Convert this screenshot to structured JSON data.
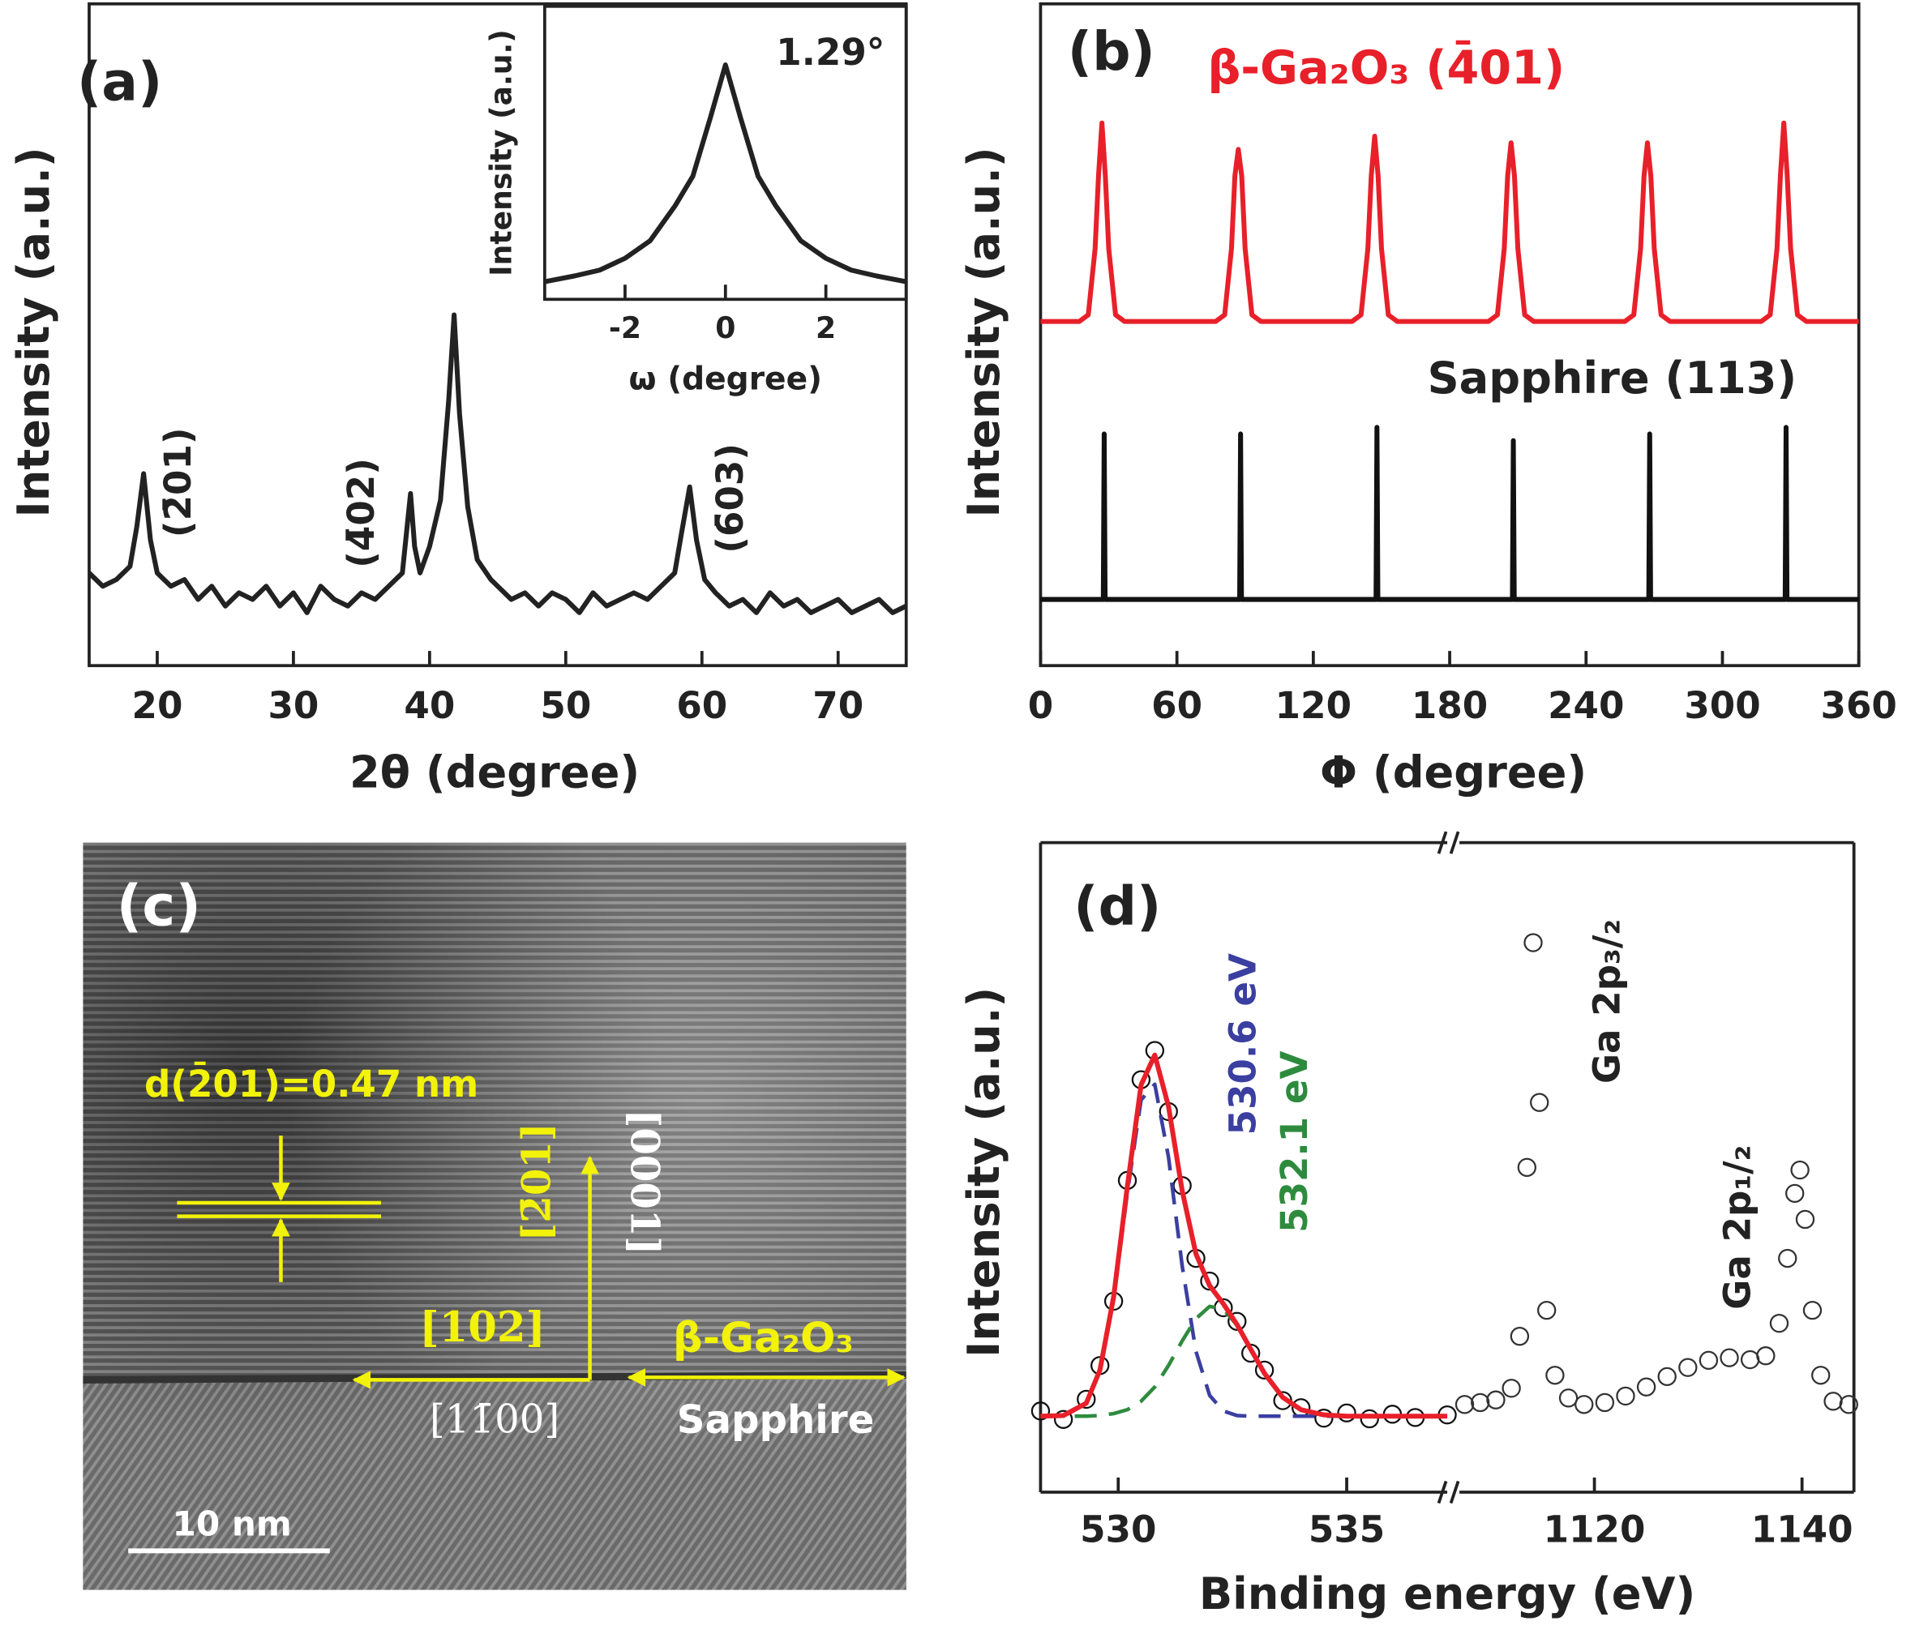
{
  "chart_data": [
    {
      "type": "line",
      "panel_label": "(a)",
      "xlabel": "2θ (degree)",
      "ylabel": "Intensity (a.u.)",
      "xlim": [
        15,
        75
      ],
      "xticks": [
        20,
        30,
        40,
        50,
        60,
        70
      ],
      "ylim": [
        0,
        100
      ],
      "annotations": [
        {
          "text": "(2̄01)",
          "color": "#222222"
        },
        {
          "text": "(4̄02)",
          "color": "#222222"
        },
        {
          "text": "(6̄03)",
          "color": "#222222"
        }
      ],
      "series": [
        {
          "color": "#222222",
          "style": "line",
          "x": [
            15,
            16,
            17,
            18,
            18.5,
            19,
            19.5,
            20,
            21,
            22,
            23,
            24,
            25,
            26,
            27,
            28,
            29,
            30,
            31,
            32,
            33,
            34,
            35,
            36,
            37,
            38,
            38.3,
            38.6,
            38.9,
            39.3,
            40,
            40.8,
            41.4,
            41.8,
            42.2,
            42.8,
            43.5,
            44.5,
            45,
            46,
            47,
            48,
            49,
            50,
            51,
            52,
            53,
            54,
            55,
            56,
            57,
            58,
            58.5,
            59.1,
            59.6,
            60.2,
            61,
            62,
            63,
            64,
            65,
            66,
            67,
            68,
            69,
            70,
            71,
            72,
            73,
            74,
            75
          ],
          "values": [
            14,
            12,
            13,
            15,
            21,
            29,
            19,
            14,
            12,
            13,
            10,
            12,
            9,
            11,
            10,
            12,
            9,
            11,
            8,
            12,
            10,
            9,
            11,
            10,
            12,
            14,
            20,
            26,
            18,
            14,
            18,
            25,
            40,
            53,
            38,
            24,
            16,
            13,
            12,
            10,
            11,
            9,
            11,
            10,
            8,
            11,
            9,
            10,
            11,
            10,
            12,
            14,
            20,
            27,
            19,
            13,
            11,
            9,
            10,
            8,
            11,
            9,
            10,
            8,
            9,
            10,
            8,
            9,
            10,
            8,
            9
          ]
        }
      ]
    },
    {
      "type": "line",
      "xlabel": "ω (degree)",
      "ylabel": "Intensity (a.u.)",
      "xlim": [
        -3.6,
        3.6
      ],
      "xticks": [
        -2,
        0,
        2
      ],
      "ylim": [
        0,
        100
      ],
      "annotations": [
        {
          "text": "1.29°",
          "color": "#222222"
        }
      ],
      "series": [
        {
          "color": "#222222",
          "style": "line",
          "x": [
            -3.6,
            -3,
            -2.5,
            -2,
            -1.5,
            -1,
            -0.65,
            -0.3,
            0,
            0.3,
            0.65,
            1,
            1.5,
            2,
            2.5,
            3,
            3.6
          ],
          "values": [
            6,
            8,
            10,
            14,
            20,
            32,
            42,
            62,
            80,
            62,
            42,
            32,
            20,
            14,
            10,
            8,
            6
          ]
        }
      ]
    },
    {
      "type": "line",
      "panel_label": "(b)",
      "xlabel": "Φ (degree)",
      "ylabel": "Intensity (a.u.)",
      "xlim": [
        0,
        360
      ],
      "xticks": [
        0,
        60,
        120,
        180,
        240,
        300,
        360
      ],
      "ylim": [
        0,
        100
      ],
      "annotations": [
        {
          "text": "β-Ga₂O₃ (4̄01)",
          "color": "#e8202a"
        },
        {
          "text": "Sapphire (113)",
          "color": "#222222"
        }
      ],
      "series": [
        {
          "color": "#e8202a",
          "style": "line",
          "x": [
            0,
            17,
            21,
            24,
            25.5,
            27,
            28.5,
            30,
            33,
            37,
            77,
            81,
            84,
            85.5,
            87,
            88.5,
            90,
            93,
            97,
            137,
            141,
            144,
            145.5,
            147,
            148.5,
            150,
            153,
            157,
            197,
            201,
            204,
            205.5,
            207,
            208.5,
            210,
            213,
            217,
            257,
            261,
            264,
            265.5,
            267,
            268.5,
            270,
            273,
            277,
            317,
            321,
            324,
            325.5,
            327,
            328.5,
            330,
            333,
            337,
            360
          ],
          "values": [
            52,
            52,
            53,
            63,
            74,
            82,
            74,
            63,
            53,
            52,
            52,
            53,
            63,
            74,
            78,
            74,
            63,
            53,
            52,
            52,
            53,
            63,
            74,
            80,
            74,
            63,
            53,
            52,
            52,
            53,
            63,
            74,
            79,
            74,
            63,
            53,
            52,
            52,
            53,
            63,
            74,
            79,
            74,
            63,
            53,
            52,
            52,
            53,
            63,
            74,
            82,
            74,
            63,
            53,
            52,
            52
          ]
        },
        {
          "color": "#111111",
          "style": "line",
          "x": [
            0,
            27.6,
            28,
            28.4,
            87.6,
            88,
            88.4,
            147.6,
            148,
            148.4,
            207.6,
            208,
            208.4,
            267.6,
            268,
            268.4,
            327.6,
            328,
            328.4,
            360
          ],
          "values": [
            10,
            10,
            35,
            10,
            10,
            35,
            10,
            10,
            36,
            10,
            10,
            34,
            10,
            10,
            35,
            10,
            10,
            36,
            10,
            10
          ]
        }
      ]
    },
    {
      "type": "line",
      "panel_label": "(d)",
      "xlabel": "Binding energy (eV)",
      "ylabel": "Intensity (a.u.)",
      "xlim": [
        [
          528.3,
          537.2
        ],
        [
          1107,
          1145
        ]
      ],
      "xticks": [
        [
          530,
          535
        ],
        [
          1120,
          1140
        ]
      ],
      "ylim": [
        0,
        100
      ],
      "annotations": [
        {
          "text": "530.6 eV",
          "color": "#3b3fa0"
        },
        {
          "text": "532.1 eV",
          "color": "#2e8b3e"
        },
        {
          "text": "Ga 2p₃/₂",
          "color": "#222222"
        },
        {
          "text": "Ga 2p₁/₂",
          "color": "#222222"
        }
      ],
      "series": [
        {
          "color": "#111111",
          "style": "markers",
          "x": [
            528.3,
            528.8,
            529.3,
            529.6,
            529.9,
            530.2,
            530.5,
            530.8,
            531.1,
            531.4,
            531.7,
            532.0,
            532.3,
            532.6,
            532.9,
            533.2,
            533.6,
            534.0,
            534.5,
            535,
            535.5,
            536,
            536.5,
            537.2
          ],
          "values": [
            12.5,
            11.2,
            14.3,
            19.5,
            29.4,
            48.0,
            63.5,
            68.0,
            58.6,
            47.2,
            36.0,
            32.5,
            28.4,
            26.3,
            21.4,
            18.8,
            14.1,
            13.0,
            11.4,
            12.2,
            11.3,
            12.0,
            11.5,
            11.9
          ]
        },
        {
          "color": "#3b3fa0",
          "style": "dashed",
          "x": [
            528.3,
            528.8,
            529.3,
            529.6,
            529.9,
            530.2,
            530.5,
            530.8,
            531.1,
            531.4,
            531.7,
            532.0,
            532.3,
            532.6,
            532.9,
            533.2,
            533.6,
            534.0,
            534.5,
            535,
            535.5,
            536,
            536.5,
            537.2
          ],
          "values": [
            11.7,
            11.8,
            13.7,
            18.7,
            29.7,
            46.1,
            60.4,
            62.8,
            51.6,
            34.8,
            21.7,
            14.9,
            12.5,
            11.8,
            11.7,
            11.7,
            11.7,
            11.7,
            11.7,
            11.7,
            11.7,
            11.7,
            11.7,
            11.7
          ]
        },
        {
          "color": "#2e8b3e",
          "style": "dashed",
          "x": [
            528.3,
            528.8,
            529.3,
            529.6,
            529.9,
            530.2,
            530.5,
            530.8,
            531.1,
            531.4,
            531.7,
            532.0,
            532.3,
            532.6,
            532.9,
            533.2,
            533.6,
            534.0,
            534.5,
            535,
            535.5,
            536,
            536.5,
            537.2
          ],
          "values": [
            11.7,
            11.7,
            11.7,
            11.8,
            12.1,
            12.7,
            14.0,
            16.2,
            19.5,
            23.3,
            26.7,
            28.6,
            28.2,
            25.7,
            22.0,
            18.3,
            14.6,
            12.7,
            11.9,
            11.7,
            11.7,
            11.7,
            11.7,
            11.7
          ]
        },
        {
          "color": "#e8202a",
          "style": "line",
          "x": [
            528.3,
            528.8,
            529.3,
            529.6,
            529.9,
            530.2,
            530.5,
            530.8,
            531.1,
            531.4,
            531.7,
            532.0,
            532.3,
            532.6,
            532.9,
            533.2,
            533.6,
            534.0,
            534.5,
            535,
            535.5,
            536,
            536.5,
            537.2
          ],
          "values": [
            11.7,
            11.8,
            13.7,
            18.8,
            30.1,
            47.1,
            62.7,
            67.3,
            59.4,
            46.4,
            36.7,
            31.8,
            29.0,
            25.8,
            22.0,
            18.3,
            14.6,
            12.7,
            11.9,
            11.7,
            11.7,
            11.7,
            11.7,
            11.7
          ]
        },
        {
          "color": "#333333",
          "style": "markers",
          "x": [
            1107.5,
            1109,
            1110.5,
            1112,
            1112.8,
            1113.5,
            1114.1,
            1114.7,
            1115.4,
            1116.2,
            1117.5,
            1119,
            1121,
            1123,
            1125,
            1127,
            1129,
            1131,
            1133,
            1135,
            1136.5,
            1137.8,
            1138.6,
            1139.3,
            1139.8,
            1140.3,
            1141,
            1141.8,
            1143,
            1144.5
          ],
          "values": [
            13.5,
            13.8,
            14.2,
            16,
            24,
            50,
            84.6,
            60,
            28,
            18,
            14.5,
            13.5,
            13.8,
            14.8,
            16.2,
            17.8,
            19.2,
            20.3,
            20.7,
            20.4,
            21,
            26,
            36,
            46,
            49.6,
            42,
            28,
            18,
            14,
            13.5
          ]
        }
      ]
    }
  ],
  "image_c": {
    "panel_label": "(c)",
    "labels": [
      "d(2̄01)=0.47 nm",
      "[2̄01]",
      "[0001]",
      "[102]",
      "[11̄00]",
      "β-Ga₂O₃",
      "Sapphire"
    ],
    "scale_bar": "10 nm"
  }
}
